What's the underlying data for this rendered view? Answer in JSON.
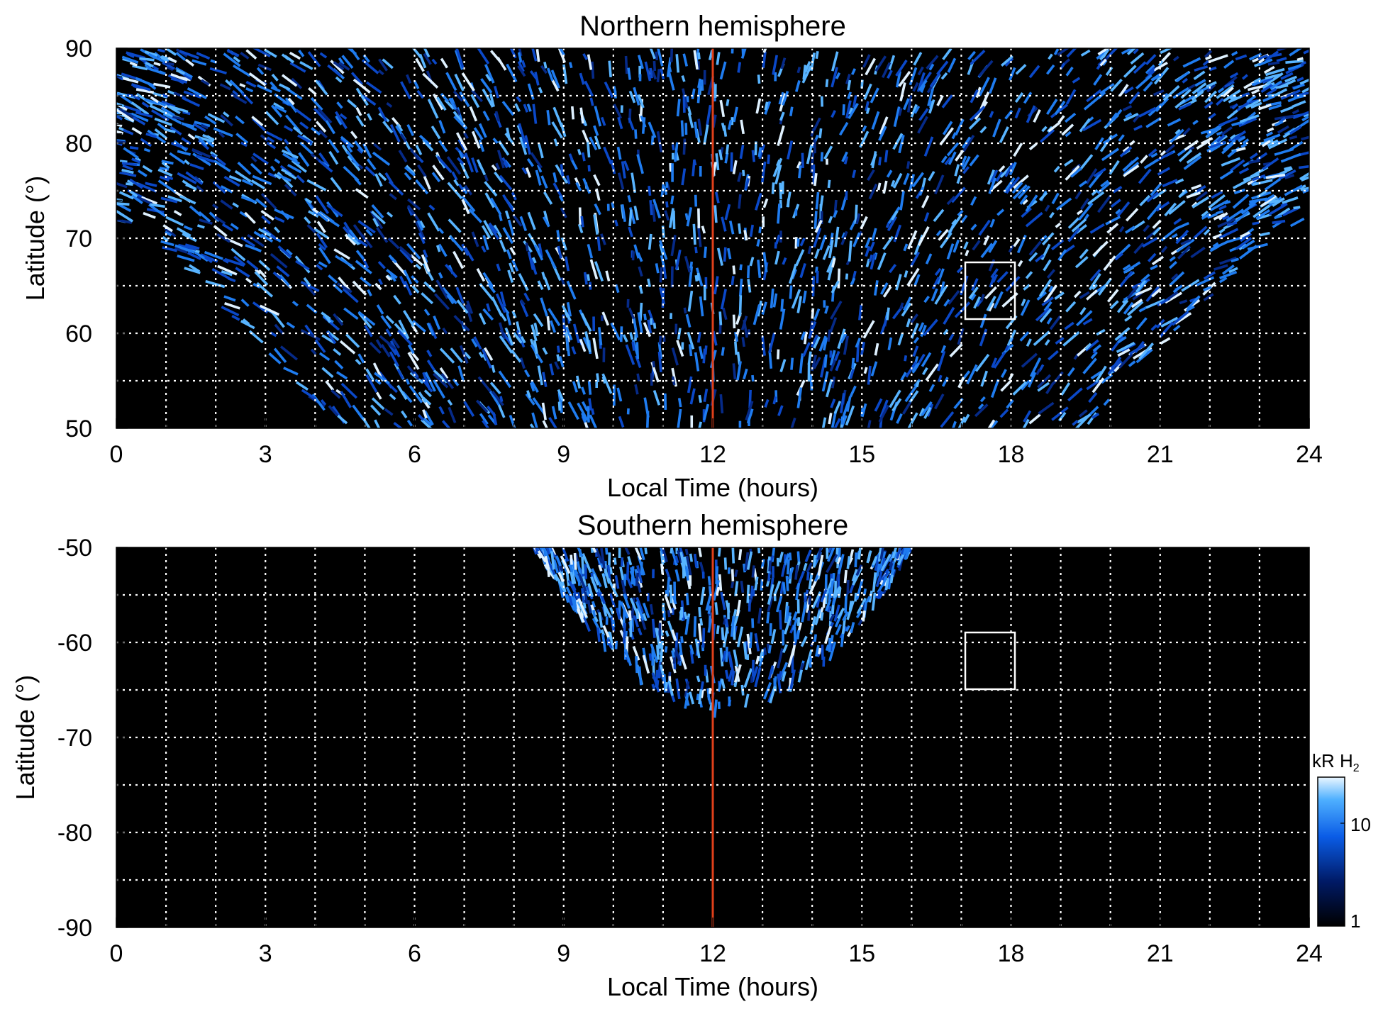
{
  "chart_data": [
    {
      "type": "heatmap",
      "title": "Northern hemisphere",
      "xlabel": "Local Time (hours)",
      "ylabel": "Latitude (°)",
      "xlim": [
        0,
        24
      ],
      "ylim": [
        50,
        90
      ],
      "x_ticks": [
        "0",
        "3",
        "6",
        "9",
        "12",
        "15",
        "18",
        "21",
        "24"
      ],
      "y_ticks": [
        "50",
        "60",
        "70",
        "80",
        "90"
      ],
      "grid": true,
      "marker_line": {
        "x": 12,
        "color": "#e0401a"
      },
      "box": {
        "x": [
          17.0,
          18.0
        ],
        "y": [
          61.5,
          67.5
        ],
        "color": "#ffffff"
      },
      "coverage_note_values": {
        "noon_min_lat": 50,
        "edge_lat_at_0": 71.5
      }
    },
    {
      "type": "heatmap",
      "title": "Southern hemisphere",
      "xlabel": "Local Time (hours)",
      "ylabel": "Latitude (°)",
      "xlim": [
        0,
        24
      ],
      "ylim": [
        -90,
        -50
      ],
      "x_ticks": [
        "0",
        "3",
        "6",
        "9",
        "12",
        "15",
        "18",
        "21",
        "24"
      ],
      "y_ticks": [
        "-50",
        "-60",
        "-70",
        "-80",
        "-90"
      ],
      "grid": true,
      "marker_line": {
        "x": 12,
        "color": "#e0401a"
      },
      "box": {
        "x": [
          17.0,
          18.0
        ],
        "y": [
          -65,
          -59
        ],
        "color": "#ffffff"
      }
    }
  ],
  "colorbar": {
    "label_main": "kR H",
    "label_sub": "2",
    "tick_labels": [
      "1",
      "10"
    ],
    "scale": "log",
    "range": [
      1,
      30
    ],
    "colors": [
      "#000000",
      "#001a66",
      "#0a5ce6",
      "#4fb0ff",
      "#eaf6ff"
    ]
  }
}
